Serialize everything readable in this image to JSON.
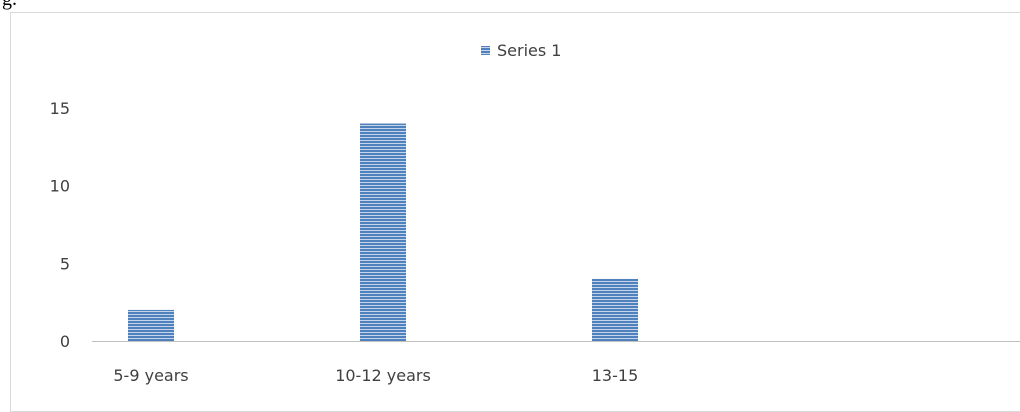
{
  "page": {
    "caption_fragment": "g."
  },
  "chart_data": {
    "type": "bar",
    "categories": [
      "5-9 years",
      "10-12 years",
      "13-15",
      ""
    ],
    "series": [
      {
        "name": "Series 1",
        "values": [
          2,
          14,
          4,
          null
        ]
      }
    ],
    "ylim": [
      0,
      15
    ],
    "yticks": [
      0,
      5,
      10,
      15
    ],
    "grid": false,
    "legend": "top-center",
    "colors": {
      "bar": "#4f81bd",
      "bar_stripe": "#c5d4ea",
      "axis": "#bfbfbf",
      "frame": "#d9d9d9",
      "text": "#404040"
    }
  }
}
